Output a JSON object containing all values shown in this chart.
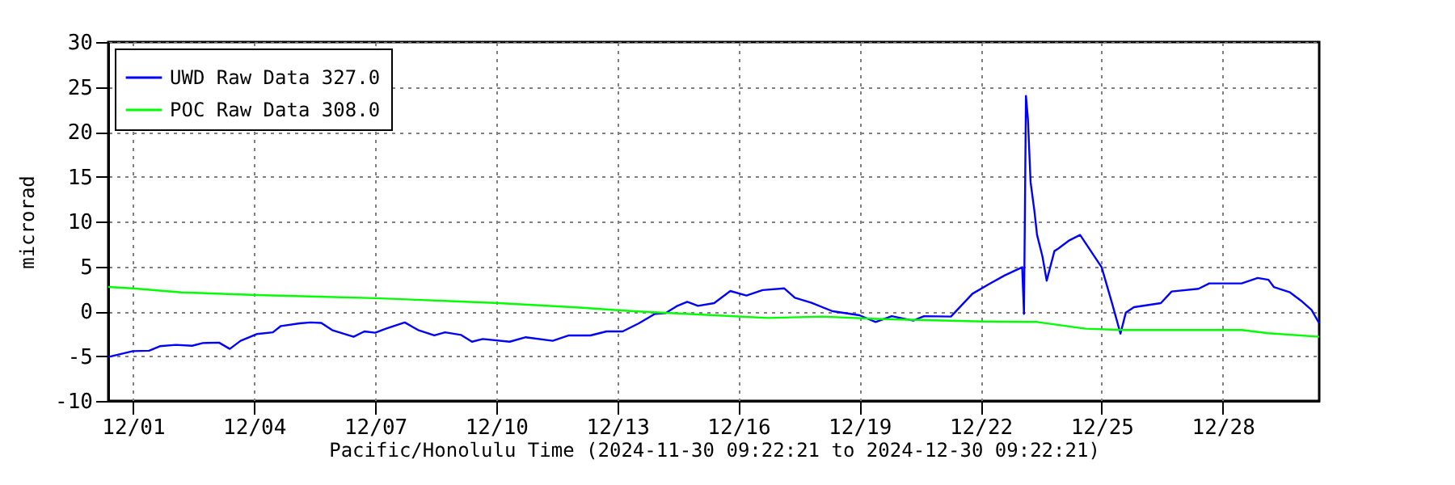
{
  "chart_data": {
    "type": "line",
    "xlabel": "Pacific/Honolulu Time (2024-11-30 09:22:21 to 2024-12-30 09:22:21)",
    "ylabel": "microrad",
    "xlim": [
      "2024-11-30T09:22",
      "2024-12-30T09:22"
    ],
    "xticks": [
      {
        "value": "2024-12-01",
        "label": "12/01"
      },
      {
        "value": "2024-12-04",
        "label": "12/04"
      },
      {
        "value": "2024-12-07",
        "label": "12/07"
      },
      {
        "value": "2024-12-10",
        "label": "12/10"
      },
      {
        "value": "2024-12-13",
        "label": "12/13"
      },
      {
        "value": "2024-12-16",
        "label": "12/16"
      },
      {
        "value": "2024-12-19",
        "label": "12/19"
      },
      {
        "value": "2024-12-22",
        "label": "12/22"
      },
      {
        "value": "2024-12-25",
        "label": "12/25"
      },
      {
        "value": "2024-12-28",
        "label": "12/28"
      }
    ],
    "ylim": [
      -10,
      30
    ],
    "yticks": [
      -10,
      -5,
      0,
      5,
      10,
      15,
      20,
      25,
      30
    ],
    "grid": true,
    "legend": "top left",
    "line_style": "solid",
    "marker": "none",
    "series": [
      {
        "name": "UWD Raw Data 327.0",
        "color": "#0000ff",
        "x": [
          "2024-11-30T09:22",
          "2024-12-01T00:00",
          "2024-12-01T09:36",
          "2024-12-01T16:00",
          "2024-12-02T01:36",
          "2024-12-02T11:12",
          "2024-12-02T17:36",
          "2024-12-03T03:12",
          "2024-12-03T09:36",
          "2024-12-03T16:00",
          "2024-12-04T01:36",
          "2024-12-04T11:12",
          "2024-12-04T16:00",
          "2024-12-05T03:12",
          "2024-12-05T09:36",
          "2024-12-05T16:00",
          "2024-12-05T22:24",
          "2024-12-06T11:12",
          "2024-12-06T17:36",
          "2024-12-07T00:00",
          "2024-12-07T06:24",
          "2024-12-07T17:36",
          "2024-12-08T01:36",
          "2024-12-08T11:12",
          "2024-12-08T17:36",
          "2024-12-09T03:12",
          "2024-12-09T09:36",
          "2024-12-09T16:00",
          "2024-12-10T08:00",
          "2024-12-10T17:36",
          "2024-12-11T09:36",
          "2024-12-11T19:12",
          "2024-12-12T08:00",
          "2024-12-12T17:36",
          "2024-12-13T03:12",
          "2024-12-13T12:48",
          "2024-12-13T22:24",
          "2024-12-14T04:48",
          "2024-12-14T11:12",
          "2024-12-14T17:36",
          "2024-12-15T00:00",
          "2024-12-15T09:36",
          "2024-12-15T19:12",
          "2024-12-16T04:48",
          "2024-12-16T14:24",
          "2024-12-17T03:12",
          "2024-12-17T09:36",
          "2024-12-17T19:12",
          "2024-12-18T08:00",
          "2024-12-19T00:00",
          "2024-12-19T09:36",
          "2024-12-19T19:12",
          "2024-12-20T08:00",
          "2024-12-20T14:24",
          "2024-12-21T06:24",
          "2024-12-21T19:12",
          "2024-12-22T04:48",
          "2024-12-22T14:24",
          "2024-12-23T00:45",
          "2024-12-23T01:50",
          "2024-12-23T03:00",
          "2024-12-23T04:10",
          "2024-12-23T05:45",
          "2024-12-23T08:00",
          "2024-12-23T09:36",
          "2024-12-23T12:48",
          "2024-12-23T15:20",
          "2024-12-23T19:55",
          "2024-12-23T22:24",
          "2024-12-24T04:48",
          "2024-12-24T11:12",
          "2024-12-24T17:36",
          "2024-12-25T00:00",
          "2024-12-25T06:24",
          "2024-12-25T11:12",
          "2024-12-25T14:24",
          "2024-12-25T19:12",
          "2024-12-26T11:12",
          "2024-12-26T17:36",
          "2024-12-27T09:36",
          "2024-12-27T16:00",
          "2024-12-28T11:12",
          "2024-12-28T20:48",
          "2024-12-29T03:12",
          "2024-12-29T06:24",
          "2024-12-29T16:00",
          "2024-12-29T22:24",
          "2024-12-30T04:48",
          "2024-12-30T09:22"
        ],
        "values": [
          -5.1,
          -4.45,
          -4.4,
          -3.9,
          -3.75,
          -3.85,
          -3.55,
          -3.5,
          -4.2,
          -3.3,
          -2.55,
          -2.35,
          -1.65,
          -1.35,
          -1.25,
          -1.3,
          -2.1,
          -2.85,
          -2.25,
          -2.4,
          -1.95,
          -1.25,
          -2.1,
          -2.7,
          -2.35,
          -2.65,
          -3.4,
          -3.1,
          -3.4,
          -2.9,
          -3.3,
          -2.7,
          -2.7,
          -2.25,
          -2.25,
          -1.35,
          -0.3,
          -0.2,
          0.55,
          1.05,
          0.6,
          0.9,
          2.25,
          1.75,
          2.35,
          2.55,
          1.5,
          0.95,
          0,
          -0.45,
          -1.2,
          -0.55,
          -1.05,
          -0.55,
          -0.6,
          1.95,
          3.0,
          4.0,
          4.9,
          -0.3,
          24.0,
          21.4,
          14.4,
          11.2,
          8.5,
          6.1,
          3.4,
          6.7,
          7.0,
          7.9,
          8.5,
          6.7,
          4.9,
          0.75,
          -2.5,
          -0.15,
          0.45,
          0.9,
          2.2,
          2.5,
          3.1,
          3.1,
          3.7,
          3.5,
          2.7,
          2.1,
          1.2,
          0.15,
          -1.35
        ]
      },
      {
        "name": "POC Raw Data 308.0",
        "color": "#00ff00",
        "x": [
          "2024-11-30T09:22",
          "2024-12-01T00:00",
          "2024-12-02T04:48",
          "2024-12-04T01:36",
          "2024-12-05T09:36",
          "2024-12-07T00:00",
          "2024-12-08T17:36",
          "2024-12-10T01:36",
          "2024-12-12T01:36",
          "2024-12-13T09:36",
          "2024-12-15T09:36",
          "2024-12-16T17:36",
          "2024-12-18T01:36",
          "2024-12-19T09:36",
          "2024-12-22T01:36",
          "2024-12-23T09:36",
          "2024-12-24T14:24",
          "2024-12-25T12:48",
          "2024-12-28T11:12",
          "2024-12-29T03:12",
          "2024-12-30T09:22"
        ],
        "values": [
          2.7,
          2.55,
          2.1,
          1.8,
          1.65,
          1.45,
          1.15,
          0.9,
          0.4,
          0.0,
          -0.45,
          -0.75,
          -0.6,
          -0.85,
          -1.15,
          -1.2,
          -1.95,
          -2.1,
          -2.1,
          -2.45,
          -2.85
        ]
      }
    ]
  }
}
